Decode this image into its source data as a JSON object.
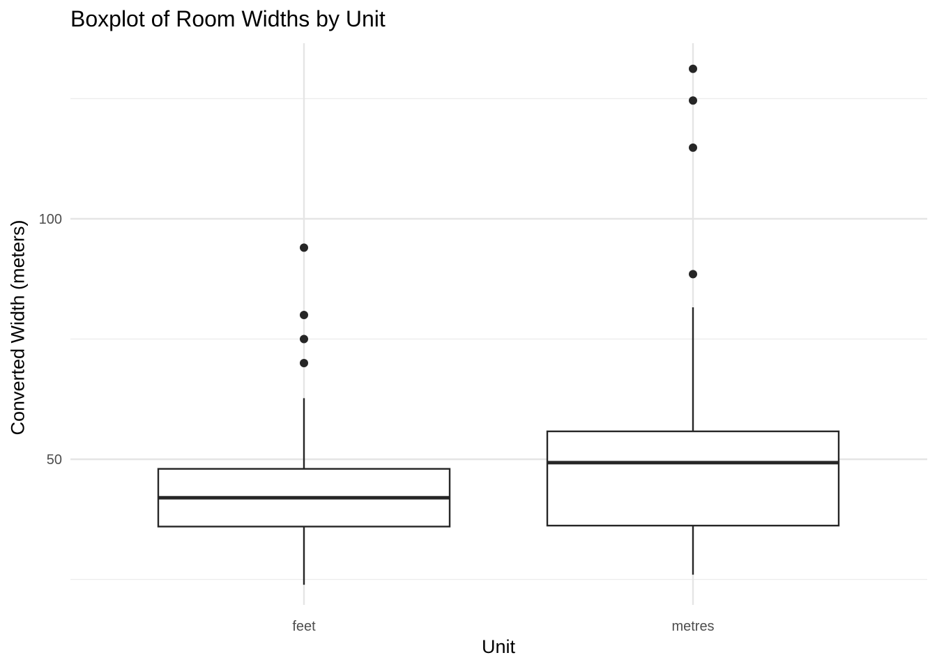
{
  "chart_data": {
    "type": "boxplot",
    "title": "Boxplot of Room Widths by Unit",
    "xlabel": "Unit",
    "ylabel": "Converted Width (meters)",
    "categories": [
      "feet",
      "metres"
    ],
    "ylim": [
      19.5,
      131
    ],
    "y_ticks": [
      50,
      100
    ],
    "y_minor_gridlines": [
      25,
      75,
      125
    ],
    "grid": true,
    "boxes": [
      {
        "name": "feet",
        "whisker_low": 23.9,
        "q1": 36.0,
        "median": 42.0,
        "q3": 48.0,
        "whisker_high": 62.7,
        "outliers": [
          70.0,
          75.0,
          80.0,
          94.0
        ]
      },
      {
        "name": "metres",
        "whisker_low": 26.0,
        "q1": 36.2,
        "median": 49.3,
        "q3": 55.8,
        "whisker_high": 81.6,
        "outliers": [
          88.5,
          114.8,
          124.6,
          131.2
        ]
      }
    ],
    "colors": {
      "box_stroke": "#262626",
      "outlier": "#262626",
      "grid_major": "#e5e5e5",
      "grid_minor": "#ececec",
      "tick_label": "#4d4d4d"
    }
  }
}
